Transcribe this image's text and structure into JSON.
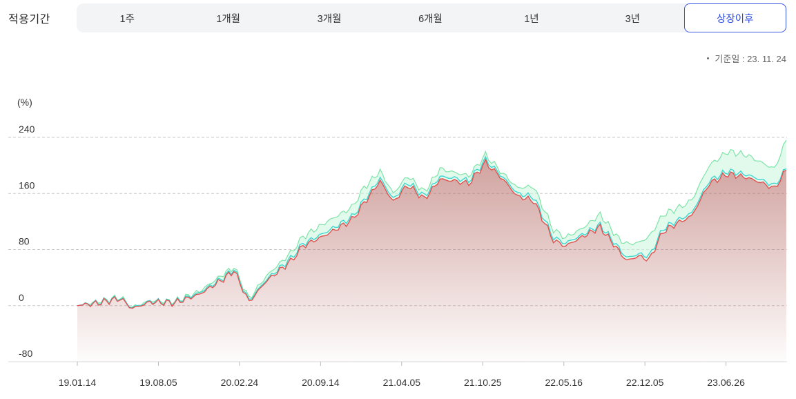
{
  "header": {
    "period_label": "적용기간",
    "tabs": [
      {
        "label": "1주"
      },
      {
        "label": "1개월"
      },
      {
        "label": "3개월"
      },
      {
        "label": "6개월"
      },
      {
        "label": "1년"
      },
      {
        "label": "3년"
      },
      {
        "label": "상장이후",
        "active": true
      }
    ],
    "base_date": "기준일 : 23. 11. 24"
  },
  "colors": {
    "accent": "#2b4be0",
    "series_red": "#e05252",
    "series_cyan": "#3fd6d2",
    "series_green": "#7fe3a8",
    "fill_red": "#b46a64",
    "fill_green": "#c8f5dc"
  },
  "chart_data": {
    "type": "area",
    "ylabel": "(%)",
    "ylim": [
      -80,
      240
    ],
    "yticks": [
      240,
      160,
      80,
      0,
      -80
    ],
    "x_ticks": [
      "19.01.14",
      "19.08.05",
      "20.02.24",
      "20.09.14",
      "21.04.05",
      "21.10.25",
      "22.05.16",
      "22.12.05",
      "23.06.26"
    ],
    "x_range": [
      "19.01.14",
      "23.11.24"
    ],
    "grid": true,
    "series": [
      {
        "color": "#7fe3a8",
        "points": [
          [
            "19.01.14",
            0
          ],
          [
            "19.03.01",
            5
          ],
          [
            "19.05.01",
            12
          ],
          [
            "19.06.01",
            -3
          ],
          [
            "19.07.15",
            7
          ],
          [
            "19.09.15",
            6
          ],
          [
            "19.11.15",
            20
          ],
          [
            "20.01.15",
            45
          ],
          [
            "20.02.10",
            55
          ],
          [
            "20.03.19",
            10
          ],
          [
            "20.05.01",
            42
          ],
          [
            "20.07.01",
            75
          ],
          [
            "20.08.01",
            98
          ],
          [
            "20.10.01",
            120
          ],
          [
            "20.12.01",
            140
          ],
          [
            "21.01.01",
            168
          ],
          [
            "21.02.10",
            192
          ],
          [
            "21.03.15",
            160
          ],
          [
            "21.04.20",
            185
          ],
          [
            "21.06.01",
            162
          ],
          [
            "21.07.10",
            195
          ],
          [
            "21.08.15",
            190
          ],
          [
            "21.09.20",
            185
          ],
          [
            "21.11.01",
            215
          ],
          [
            "21.12.15",
            188
          ],
          [
            "22.01.20",
            168
          ],
          [
            "22.03.01",
            170
          ],
          [
            "22.04.20",
            108
          ],
          [
            "22.05.20",
            97
          ],
          [
            "22.07.01",
            110
          ],
          [
            "22.08.15",
            130
          ],
          [
            "22.10.01",
            95
          ],
          [
            "22.10.20",
            88
          ],
          [
            "22.11.20",
            90
          ],
          [
            "22.12.15",
            98
          ],
          [
            "23.01.20",
            130
          ],
          [
            "23.03.01",
            140
          ],
          [
            "23.04.01",
            150
          ],
          [
            "23.05.15",
            200
          ],
          [
            "23.07.01",
            220
          ],
          [
            "23.08.15",
            215
          ],
          [
            "23.09.20",
            205
          ],
          [
            "23.10.25",
            195
          ],
          [
            "23.11.24",
            236
          ]
        ]
      },
      {
        "color": "#3fd6d2",
        "points": [
          [
            "19.01.14",
            0
          ],
          [
            "19.03.01",
            4
          ],
          [
            "19.05.01",
            11
          ],
          [
            "19.06.01",
            -3
          ],
          [
            "19.07.15",
            6
          ],
          [
            "19.09.15",
            5
          ],
          [
            "19.11.15",
            18
          ],
          [
            "20.01.15",
            40
          ],
          [
            "20.02.10",
            52
          ],
          [
            "20.03.19",
            7
          ],
          [
            "20.05.01",
            37
          ],
          [
            "20.07.01",
            67
          ],
          [
            "20.08.01",
            88
          ],
          [
            "20.10.01",
            106
          ],
          [
            "20.12.01",
            126
          ],
          [
            "21.01.01",
            150
          ],
          [
            "21.02.10",
            182
          ],
          [
            "21.03.15",
            152
          ],
          [
            "21.04.20",
            176
          ],
          [
            "21.06.01",
            156
          ],
          [
            "21.07.10",
            184
          ],
          [
            "21.08.15",
            182
          ],
          [
            "21.09.20",
            178
          ],
          [
            "21.11.01",
            208
          ],
          [
            "21.12.15",
            183
          ],
          [
            "22.01.20",
            160
          ],
          [
            "22.03.01",
            155
          ],
          [
            "22.04.20",
            97
          ],
          [
            "22.05.20",
            89
          ],
          [
            "22.07.01",
            101
          ],
          [
            "22.08.15",
            115
          ],
          [
            "22.10.01",
            82
          ],
          [
            "22.10.20",
            68
          ],
          [
            "22.11.20",
            74
          ],
          [
            "22.12.15",
            70
          ],
          [
            "23.01.20",
            110
          ],
          [
            "23.03.01",
            123
          ],
          [
            "23.04.01",
            132
          ],
          [
            "23.05.15",
            178
          ],
          [
            "23.07.01",
            192
          ],
          [
            "23.08.15",
            187
          ],
          [
            "23.09.20",
            180
          ],
          [
            "23.10.25",
            171
          ],
          [
            "23.11.24",
            195
          ]
        ]
      },
      {
        "color": "#e05252",
        "points": [
          [
            "19.01.14",
            0
          ],
          [
            "19.03.01",
            3
          ],
          [
            "19.05.01",
            10
          ],
          [
            "19.06.01",
            -4
          ],
          [
            "19.07.15",
            5
          ],
          [
            "19.09.15",
            4
          ],
          [
            "19.11.15",
            16
          ],
          [
            "20.01.15",
            38
          ],
          [
            "20.02.10",
            50
          ],
          [
            "20.03.19",
            5
          ],
          [
            "20.05.01",
            35
          ],
          [
            "20.07.01",
            63
          ],
          [
            "20.08.01",
            85
          ],
          [
            "20.10.01",
            102
          ],
          [
            "20.12.01",
            122
          ],
          [
            "21.01.01",
            146
          ],
          [
            "21.02.10",
            178
          ],
          [
            "21.03.15",
            148
          ],
          [
            "21.04.20",
            172
          ],
          [
            "21.06.01",
            152
          ],
          [
            "21.07.10",
            180
          ],
          [
            "21.08.15",
            178
          ],
          [
            "21.09.20",
            174
          ],
          [
            "21.11.01",
            204
          ],
          [
            "21.12.15",
            180
          ],
          [
            "22.01.20",
            156
          ],
          [
            "22.03.01",
            150
          ],
          [
            "22.04.20",
            93
          ],
          [
            "22.05.20",
            85
          ],
          [
            "22.07.01",
            98
          ],
          [
            "22.08.15",
            112
          ],
          [
            "22.10.01",
            78
          ],
          [
            "22.10.20",
            64
          ],
          [
            "22.11.20",
            71
          ],
          [
            "22.12.15",
            65
          ],
          [
            "23.01.20",
            106
          ],
          [
            "23.03.01",
            119
          ],
          [
            "23.04.01",
            128
          ],
          [
            "23.05.15",
            174
          ],
          [
            "23.07.01",
            188
          ],
          [
            "23.08.15",
            183
          ],
          [
            "23.09.20",
            176
          ],
          [
            "23.10.25",
            167
          ],
          [
            "23.11.24",
            193
          ]
        ]
      }
    ]
  }
}
